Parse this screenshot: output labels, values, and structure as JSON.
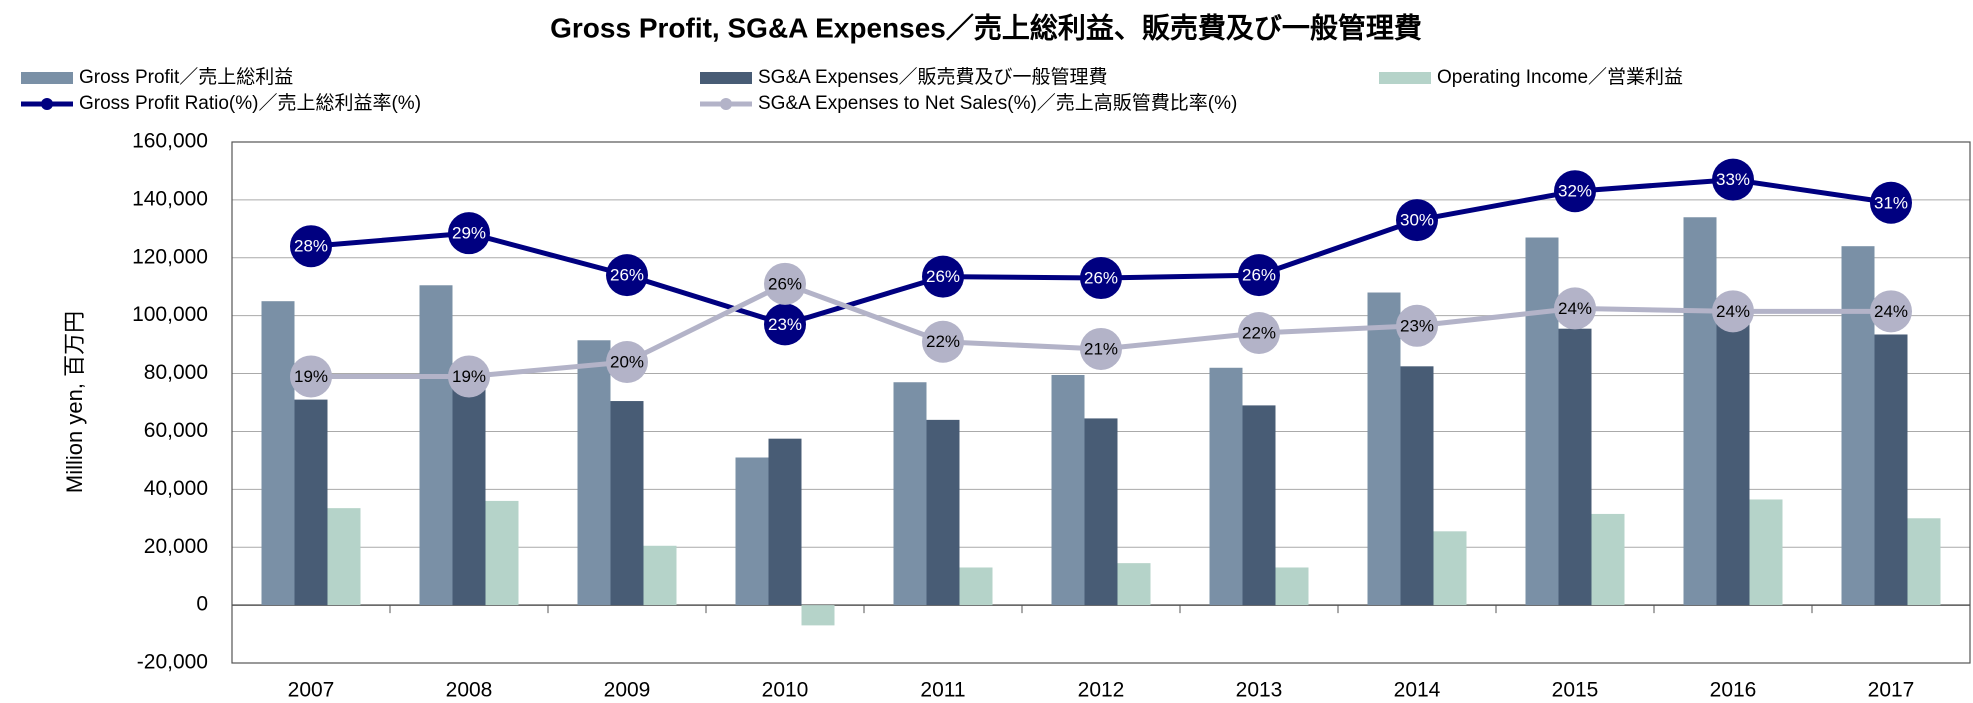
{
  "chart_data": {
    "type": "bar",
    "title": "Gross Profit, SG&A Expenses／売上総利益、販売費及び一般管理費",
    "y_label": "Million yen, 百万円",
    "categories": [
      "2007",
      "2008",
      "2009",
      "2010",
      "2011",
      "2012",
      "2013",
      "2014",
      "2015",
      "2016",
      "2017"
    ],
    "ylim": [
      -20000,
      160000
    ],
    "yticks": [
      {
        "value": -20000,
        "label": "-20,000"
      },
      0,
      {
        "value": 20000,
        "label": "20,000"
      },
      {
        "value": 40000,
        "label": "40,000"
      },
      {
        "value": 60000,
        "label": "60,000"
      },
      {
        "value": 80000,
        "label": "80,000"
      },
      {
        "value": 100000,
        "label": "100,000"
      },
      {
        "value": 120000,
        "label": "120,000"
      },
      {
        "value": 140000,
        "label": "140,000"
      },
      {
        "value": 160000,
        "label": "160,000"
      }
    ],
    "y2lim": [
      -0.4,
      35.6
    ],
    "grid": true,
    "series": [
      {
        "name": "Gross Profit／売上総利益",
        "type": "bar",
        "color": "#7a90a6",
        "values": [
          105000,
          110500,
          91500,
          51000,
          77000,
          79500,
          82000,
          108000,
          127000,
          134000,
          124000
        ]
      },
      {
        "name": "SG&A Expenses／販売費及び一般管理費",
        "type": "bar",
        "color": "#485c75",
        "values": [
          71000,
          75000,
          70500,
          57500,
          64000,
          64500,
          69000,
          82500,
          95500,
          100000,
          93500
        ]
      },
      {
        "name": "Operating Income／営業利益",
        "type": "bar",
        "color": "#b5d3c9",
        "values": [
          33500,
          36000,
          20500,
          -7000,
          13000,
          14500,
          13000,
          25500,
          31500,
          36500,
          30000
        ]
      },
      {
        "name": "Gross Profit Ratio(%)／売上総利益率(%)",
        "type": "line",
        "axis": "y2",
        "color": "#000080",
        "label_color": "#ffffff",
        "values": [
          28.4,
          29.3,
          26.4,
          23.0,
          26.3,
          26.2,
          26.4,
          30.2,
          32.2,
          33.0,
          31.4
        ],
        "value_labels": [
          "28%",
          "29%",
          "26%",
          "23%",
          "26%",
          "26%",
          "26%",
          "30%",
          "32%",
          "33%",
          "31%"
        ]
      },
      {
        "name": "SG&A Expenses to Net Sales(%)／売上高販管費比率(%)",
        "type": "line",
        "axis": "y2",
        "color": "#b3b3c8",
        "label_color": "#000000",
        "values": [
          19.4,
          19.4,
          20.4,
          25.8,
          21.8,
          21.3,
          22.4,
          22.9,
          24.1,
          23.9,
          23.9
        ],
        "value_labels": [
          "19%",
          "19%",
          "20%",
          "26%",
          "22%",
          "21%",
          "22%",
          "23%",
          "24%",
          "24%",
          "24%"
        ]
      }
    ]
  }
}
